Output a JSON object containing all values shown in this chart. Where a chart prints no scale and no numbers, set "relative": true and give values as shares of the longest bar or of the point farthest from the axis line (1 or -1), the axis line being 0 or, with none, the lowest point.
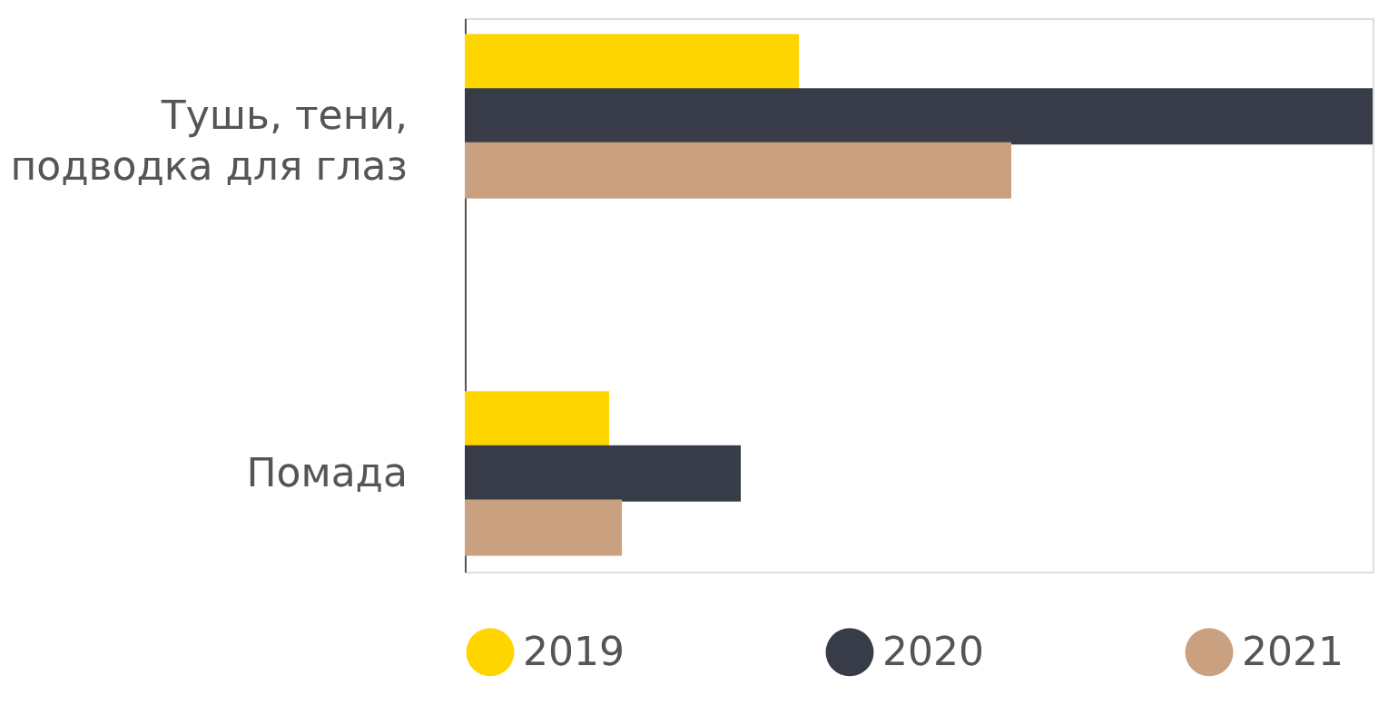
{
  "chart_data": {
    "type": "bar",
    "orientation": "horizontal",
    "relative": true,
    "categories": [
      "Тушь, тени, подводка для глаз",
      "Помада"
    ],
    "series": [
      {
        "name": "2019",
        "color": "#ffd500",
        "values": [
          0.368,
          0.159
        ]
      },
      {
        "name": "2020",
        "color": "#373c48",
        "values": [
          1,
          0.304
        ]
      },
      {
        "name": "2021",
        "color": "#c9a080",
        "values": [
          0.602,
          0.173
        ]
      }
    ],
    "legend": "bottom"
  }
}
